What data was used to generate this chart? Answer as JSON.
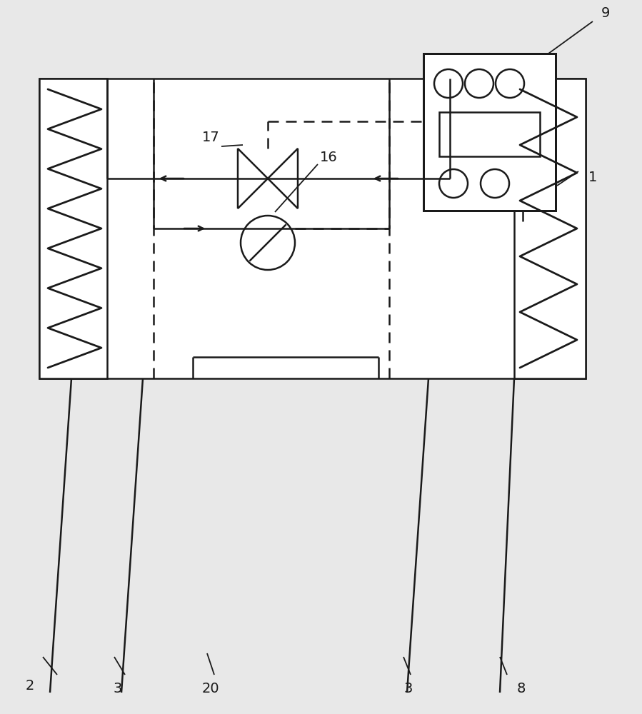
{
  "bg_color": "#e8e8e8",
  "line_color": "#1a1a1a",
  "lw": 1.8,
  "font_size": 14,
  "fig_w": 8.99,
  "fig_h": 10.0,
  "dpi": 100
}
